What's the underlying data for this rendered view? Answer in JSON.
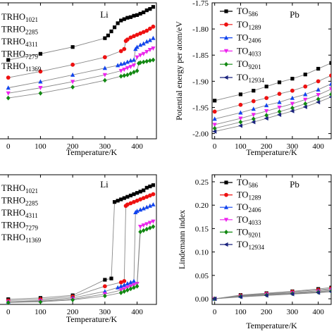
{
  "chart_data": [
    {
      "type": "line",
      "annotation": "Li",
      "xlabel": "Temperature/K",
      "ylabel": "",
      "xlim": [
        -30,
        460
      ],
      "ylim": [
        0,
        1
      ],
      "xticks": [
        0,
        100,
        200,
        300,
        400
      ],
      "yticks": [],
      "legend": "top-left",
      "series": [
        {
          "name": "TRHO",
          "sub": "1021",
          "color": "#000000",
          "marker": "square",
          "x": [
            0,
            100,
            200,
            300,
            310,
            320,
            330,
            340,
            350,
            360,
            370,
            380,
            390,
            400,
            410,
            420,
            430,
            440,
            450
          ],
          "y": [
            0.58,
            0.625,
            0.675,
            0.74,
            0.76,
            0.79,
            0.82,
            0.85,
            0.87,
            0.88,
            0.89,
            0.895,
            0.905,
            0.91,
            0.92,
            0.93,
            0.945,
            0.955,
            0.97
          ]
        },
        {
          "name": "TRHO",
          "sub": "2285",
          "color": "#ee1111",
          "marker": "circle",
          "x": [
            0,
            100,
            200,
            300,
            350,
            360,
            365,
            370,
            380,
            390,
            400,
            410,
            420,
            430,
            440,
            450
          ],
          "y": [
            0.45,
            0.495,
            0.545,
            0.6,
            0.645,
            0.66,
            0.72,
            0.73,
            0.745,
            0.755,
            0.765,
            0.775,
            0.785,
            0.795,
            0.81,
            0.825
          ]
        },
        {
          "name": "TRHO",
          "sub": "4311",
          "color": "#1144ee",
          "marker": "triangle-up",
          "x": [
            0,
            100,
            200,
            300,
            340,
            350,
            360,
            370,
            380,
            390,
            395,
            400,
            410,
            420,
            430,
            440,
            450
          ],
          "y": [
            0.375,
            0.42,
            0.47,
            0.52,
            0.54,
            0.55,
            0.555,
            0.565,
            0.575,
            0.58,
            0.66,
            0.675,
            0.69,
            0.7,
            0.715,
            0.725,
            0.74
          ]
        },
        {
          "name": "TRHO",
          "sub": "7279",
          "color": "#ee22ee",
          "marker": "triangle-down",
          "x": [
            0,
            100,
            200,
            300,
            350,
            360,
            370,
            380,
            390,
            400,
            410,
            420,
            430,
            440,
            450
          ],
          "y": [
            0.335,
            0.375,
            0.42,
            0.47,
            0.5,
            0.51,
            0.52,
            0.53,
            0.54,
            0.6,
            0.615,
            0.625,
            0.64,
            0.655,
            0.665
          ]
        },
        {
          "name": "TRHO",
          "sub": "11369",
          "color": "#118811",
          "marker": "diamond",
          "x": [
            0,
            100,
            200,
            300,
            350,
            360,
            370,
            380,
            390,
            400,
            405,
            410,
            420,
            430,
            440,
            450
          ],
          "y": [
            0.3,
            0.335,
            0.38,
            0.43,
            0.46,
            0.465,
            0.47,
            0.48,
            0.49,
            0.5,
            0.555,
            0.56,
            0.565,
            0.57,
            0.575,
            0.58
          ]
        }
      ]
    },
    {
      "type": "line",
      "annotation": "Pb",
      "xlabel": "Temperature/K",
      "ylabel": "Potential energy per atom/eV",
      "xlim": [
        -10,
        450
      ],
      "ylim": [
        -2.01,
        -1.75
      ],
      "xticks": [
        0,
        100,
        200,
        300,
        400
      ],
      "yticks": [
        -2.0,
        -1.95,
        -1.9,
        -1.85,
        -1.8,
        -1.75
      ],
      "yticklabels": [
        "-2.00",
        "-1.95",
        "-1.90",
        "-1.85",
        "-1.80",
        "-1.75"
      ],
      "legend": "top-left",
      "series": [
        {
          "name": "TO",
          "sub": "586",
          "color": "#000000",
          "marker": "square",
          "x": [
            0,
            100,
            150,
            200,
            250,
            300,
            350,
            400,
            450
          ],
          "y": [
            -1.937,
            -1.925,
            -1.918,
            -1.91,
            -1.902,
            -1.895,
            -1.887,
            -1.876,
            -1.865
          ]
        },
        {
          "name": "TO",
          "sub": "1289",
          "color": "#ee1111",
          "marker": "circle",
          "x": [
            0,
            100,
            150,
            200,
            250,
            300,
            350,
            400,
            450
          ],
          "y": [
            -1.958,
            -1.945,
            -1.938,
            -1.932,
            -1.924,
            -1.918,
            -1.91,
            -1.9,
            -1.889
          ]
        },
        {
          "name": "TO",
          "sub": "2406",
          "color": "#1144ee",
          "marker": "triangle-up",
          "x": [
            0,
            100,
            150,
            200,
            250,
            300,
            350,
            400,
            450
          ],
          "y": [
            -1.972,
            -1.96,
            -1.953,
            -1.946,
            -1.94,
            -1.932,
            -1.925,
            -1.916,
            -1.905
          ]
        },
        {
          "name": "TO",
          "sub": "4033",
          "color": "#ee22ee",
          "marker": "triangle-down",
          "x": [
            0,
            100,
            150,
            200,
            250,
            300,
            350,
            400,
            450
          ],
          "y": [
            -1.983,
            -1.971,
            -1.964,
            -1.957,
            -1.95,
            -1.943,
            -1.935,
            -1.926,
            -1.915
          ]
        },
        {
          "name": "TO",
          "sub": "9201",
          "color": "#118811",
          "marker": "diamond",
          "x": [
            0,
            100,
            150,
            200,
            250,
            300,
            350,
            400,
            450
          ],
          "y": [
            -1.99,
            -1.978,
            -1.972,
            -1.965,
            -1.958,
            -1.951,
            -1.943,
            -1.934,
            -1.925
          ]
        },
        {
          "name": "TO",
          "sub": "12934",
          "color": "#1a237e",
          "marker": "triangle-left",
          "x": [
            0,
            100,
            150,
            200,
            250,
            300,
            350,
            400,
            450
          ],
          "y": [
            -1.996,
            -1.985,
            -1.978,
            -1.971,
            -1.964,
            -1.957,
            -1.949,
            -1.94,
            -1.93
          ]
        }
      ]
    },
    {
      "type": "line",
      "annotation": "Li",
      "xlabel": "Temperature/K",
      "ylabel": "",
      "xlim": [
        -30,
        460
      ],
      "ylim": [
        0,
        1
      ],
      "xticks": [
        0,
        100,
        200,
        300,
        400
      ],
      "yticks": [],
      "legend": "top-left",
      "series": [
        {
          "name": "TRHO",
          "sub": "1021",
          "color": "#000000",
          "marker": "square",
          "x": [
            0,
            100,
            200,
            300,
            320,
            330,
            340,
            350,
            360,
            370,
            380,
            390,
            400,
            410,
            420,
            430,
            440,
            450
          ],
          "y": [
            0.04,
            0.05,
            0.07,
            0.19,
            0.2,
            0.79,
            0.8,
            0.81,
            0.82,
            0.83,
            0.84,
            0.85,
            0.86,
            0.87,
            0.88,
            0.9,
            0.91,
            0.92
          ]
        },
        {
          "name": "TRHO",
          "sub": "2285",
          "color": "#ee1111",
          "marker": "circle",
          "x": [
            0,
            100,
            200,
            300,
            350,
            360,
            365,
            370,
            380,
            390,
            400,
            410,
            420,
            430,
            440,
            450
          ],
          "y": [
            0.03,
            0.04,
            0.06,
            0.14,
            0.17,
            0.18,
            0.76,
            0.77,
            0.78,
            0.79,
            0.8,
            0.81,
            0.82,
            0.83,
            0.84,
            0.85
          ]
        },
        {
          "name": "TRHO",
          "sub": "4311",
          "color": "#1144ee",
          "marker": "triangle-up",
          "x": [
            0,
            100,
            200,
            300,
            340,
            350,
            360,
            370,
            380,
            390,
            395,
            400,
            410,
            420,
            430,
            440,
            450
          ],
          "y": [
            0.02,
            0.03,
            0.05,
            0.1,
            0.13,
            0.14,
            0.15,
            0.16,
            0.17,
            0.18,
            0.71,
            0.72,
            0.73,
            0.74,
            0.75,
            0.76,
            0.77
          ]
        },
        {
          "name": "TRHO",
          "sub": "7279",
          "color": "#ee22ee",
          "marker": "triangle-down",
          "x": [
            0,
            100,
            200,
            300,
            350,
            360,
            370,
            380,
            390,
            400,
            410,
            420,
            430,
            440,
            450
          ],
          "y": [
            0.02,
            0.025,
            0.04,
            0.08,
            0.11,
            0.12,
            0.13,
            0.14,
            0.15,
            0.16,
            0.6,
            0.61,
            0.62,
            0.63,
            0.64
          ]
        },
        {
          "name": "TRHO",
          "sub": "11369",
          "color": "#118811",
          "marker": "diamond",
          "x": [
            0,
            100,
            200,
            300,
            350,
            360,
            370,
            380,
            390,
            400,
            410,
            420,
            430,
            440,
            450
          ],
          "y": [
            0.015,
            0.02,
            0.035,
            0.065,
            0.09,
            0.1,
            0.11,
            0.12,
            0.13,
            0.14,
            0.56,
            0.57,
            0.58,
            0.59,
            0.6
          ]
        }
      ]
    },
    {
      "type": "line",
      "annotation": "Pb",
      "xlabel": "Temperature/K",
      "ylabel": "Lindemann index",
      "xlim": [
        -10,
        450
      ],
      "ylim": [
        -0.012,
        0.265
      ],
      "xticks": [
        0,
        100,
        200,
        300,
        400
      ],
      "yticks": [
        0.0,
        0.05,
        0.1,
        0.15,
        0.2,
        0.25
      ],
      "yticklabels": [
        "0.00",
        "0.05",
        "0.10",
        "0.15",
        "0.20",
        "0.25"
      ],
      "legend": "top-left",
      "series": [
        {
          "name": "TO",
          "sub": "586",
          "color": "#000000",
          "marker": "square",
          "x": [
            0,
            100,
            200,
            300,
            400,
            450
          ],
          "y": [
            0.0,
            0.008,
            0.012,
            0.016,
            0.021,
            0.024
          ]
        },
        {
          "name": "TO",
          "sub": "1289",
          "color": "#ee1111",
          "marker": "circle",
          "x": [
            0,
            100,
            200,
            300,
            400,
            450
          ],
          "y": [
            0.0,
            0.007,
            0.011,
            0.015,
            0.019,
            0.022
          ]
        },
        {
          "name": "TO",
          "sub": "2406",
          "color": "#1144ee",
          "marker": "triangle-up",
          "x": [
            0,
            100,
            200,
            300,
            400,
            450
          ],
          "y": [
            0.0,
            0.006,
            0.01,
            0.013,
            0.017,
            0.02
          ]
        },
        {
          "name": "TO",
          "sub": "4033",
          "color": "#ee22ee",
          "marker": "triangle-down",
          "x": [
            0,
            100,
            200,
            300,
            400,
            450
          ],
          "y": [
            0.0,
            0.005,
            0.009,
            0.012,
            0.015,
            0.018
          ]
        },
        {
          "name": "TO",
          "sub": "9201",
          "color": "#118811",
          "marker": "diamond",
          "x": [
            0,
            100,
            200,
            300,
            400,
            450
          ],
          "y": [
            0.0,
            0.005,
            0.008,
            0.011,
            0.014,
            0.016
          ]
        },
        {
          "name": "TO",
          "sub": "12934",
          "color": "#1a237e",
          "marker": "triangle-left",
          "x": [
            0,
            100,
            200,
            300,
            400,
            450
          ],
          "y": [
            0.0,
            0.004,
            0.007,
            0.01,
            0.013,
            0.015
          ]
        }
      ]
    }
  ]
}
